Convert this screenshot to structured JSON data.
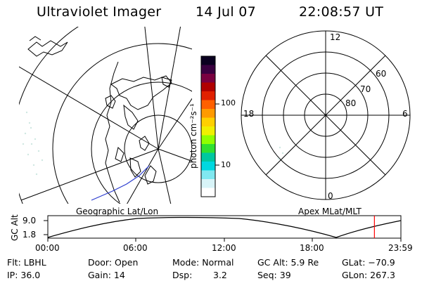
{
  "header": {
    "instrument": "Ultraviolet Imager",
    "date": "14 Jul 07",
    "time": "22:08:57 UT"
  },
  "colorbar": {
    "label": "photon cm⁻²s⁻¹",
    "ticks": [
      "100",
      "10"
    ],
    "colors": [
      "#0a0020",
      "#3a0040",
      "#7a0040",
      "#b00000",
      "#e02000",
      "#ff6000",
      "#ff9a00",
      "#ffd000",
      "#f0f000",
      "#90ff00",
      "#30e030",
      "#00c8a0",
      "#00d8e0",
      "#80e8f0",
      "#d8f4f8",
      "#ffffff"
    ]
  },
  "polar_plot": {
    "mlt_labels": {
      "top": "12",
      "left": "18",
      "right": "6",
      "bottom": "0"
    },
    "lat_labels": [
      "60",
      "70",
      "80"
    ]
  },
  "map_labels": {
    "left": "Geographic Lat/Lon",
    "right": "Apex MLat/MLT"
  },
  "altitude_plot": {
    "axis_label": "GC Alt",
    "y_ticks": [
      "9.0",
      "1.8"
    ],
    "x_ticks": [
      "00:00",
      "06:00",
      "12:00",
      "18:00",
      "23:59"
    ],
    "current_time_fraction": 0.925,
    "marker_color": "#ff0000"
  },
  "info": {
    "filter": "Flt: LBHL",
    "ip": "IP: 36.0",
    "door": "Door: Open",
    "gain": "Gain: 14",
    "mode": "Mode: Normal",
    "dsp": "Dsp:",
    "dsp_value": "3.2",
    "gc_alt": "GC Alt: 5.9 Re",
    "seq": "Seq: 39",
    "glat": "GLat: −70.9",
    "glon": "GLon: 267.3"
  }
}
